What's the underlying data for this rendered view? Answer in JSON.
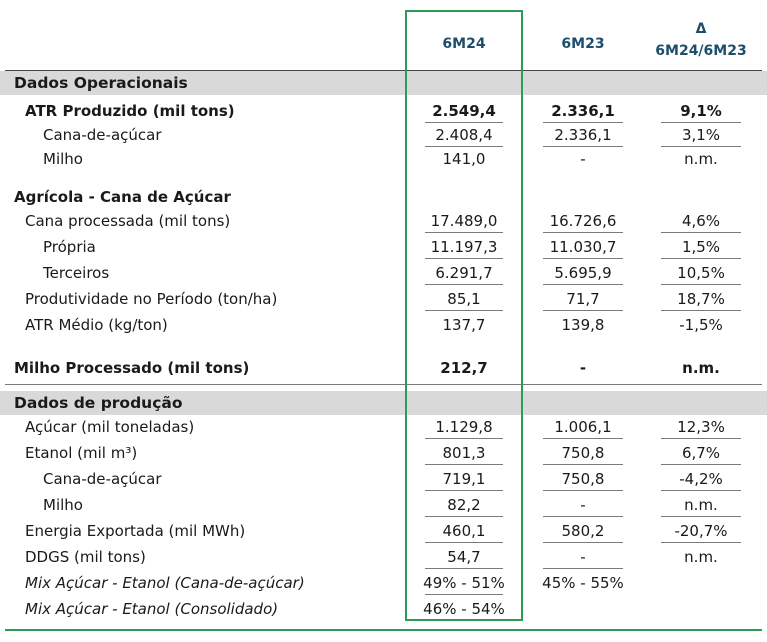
{
  "header": {
    "col1": "6M24",
    "col2": "6M23",
    "col3_line1": "Δ",
    "col3_line2": "6M24/6M23"
  },
  "rows": [
    {
      "label": "Dados Operacionais",
      "v1": "",
      "v2": "",
      "v3": ""
    },
    {
      "label": "ATR Produzido (mil tons)",
      "v1": "2.549,4",
      "v2": "2.336,1",
      "v3": "9,1%"
    },
    {
      "label": "Cana-de-açúcar",
      "v1": "2.408,4",
      "v2": "2.336,1",
      "v3": "3,1%"
    },
    {
      "label": "Milho",
      "v1": "141,0",
      "v2": "-",
      "v3": "n.m."
    },
    {
      "label": "Agrícola - Cana de Açúcar",
      "v1": "",
      "v2": "",
      "v3": ""
    },
    {
      "label": "Cana processada (mil tons)",
      "v1": "17.489,0",
      "v2": "16.726,6",
      "v3": "4,6%"
    },
    {
      "label": "Própria",
      "v1": "11.197,3",
      "v2": "11.030,7",
      "v3": "1,5%"
    },
    {
      "label": "Terceiros",
      "v1": "6.291,7",
      "v2": "5.695,9",
      "v3": "10,5%"
    },
    {
      "label": "Produtividade no Período (ton/ha)",
      "v1": "85,1",
      "v2": "71,7",
      "v3": "18,7%"
    },
    {
      "label": "ATR Médio (kg/ton)",
      "v1": "137,7",
      "v2": "139,8",
      "v3": "-1,5%"
    },
    {
      "label": "Milho Processado (mil tons)",
      "v1": "212,7",
      "v2": "-",
      "v3": "n.m."
    },
    {
      "label": "Dados de produção",
      "v1": "",
      "v2": "",
      "v3": ""
    },
    {
      "label": "Açúcar (mil toneladas)",
      "v1": "1.129,8",
      "v2": "1.006,1",
      "v3": "12,3%"
    },
    {
      "label": "Etanol (mil m³)",
      "v1": "801,3",
      "v2": "750,8",
      "v3": "6,7%"
    },
    {
      "label": "Cana-de-açúcar",
      "v1": "719,1",
      "v2": "750,8",
      "v3": "-4,2%"
    },
    {
      "label": "Milho",
      "v1": "82,2",
      "v2": "-",
      "v3": "n.m."
    },
    {
      "label": "Energia Exportada (mil MWh)",
      "v1": "460,1",
      "v2": "580,2",
      "v3": "-20,7%"
    },
    {
      "label": "DDGS (mil tons)",
      "v1": "54,7",
      "v2": "-",
      "v3": "n.m."
    },
    {
      "label": "Mix Açúcar - Etanol (Cana-de-açúcar)",
      "v1": "49% - 51%",
      "v2": "45% - 55%",
      "v3": ""
    },
    {
      "label": "Mix Açúcar - Etanol (Consolidado)",
      "v1": "46% - 54%",
      "v2": "",
      "v3": ""
    }
  ],
  "colors": {
    "header_text": "#1d4e6b",
    "highlight_border": "#2e9a56",
    "section_bg": "#d9d9d9"
  }
}
